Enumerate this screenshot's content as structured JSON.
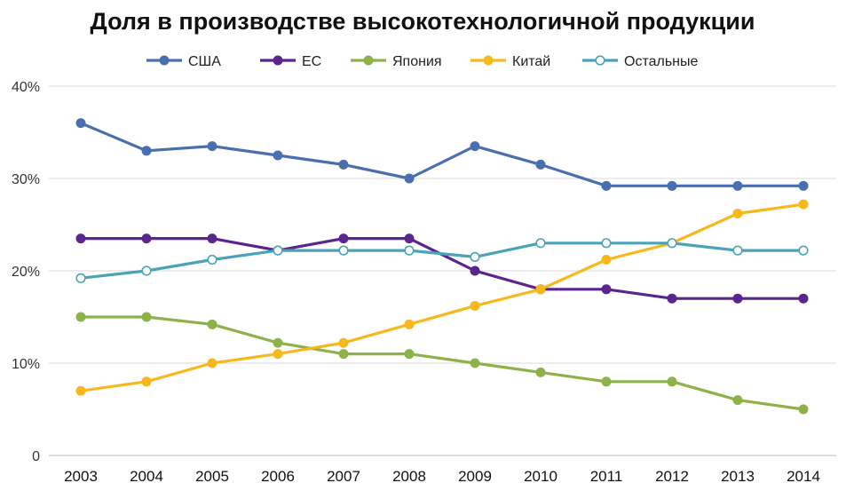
{
  "chart_data": {
    "type": "line",
    "title": "Доля в производстве высокотехнологичной продукции",
    "xlabel": "",
    "ylabel": "",
    "x": [
      "2003",
      "2004",
      "2005",
      "2006",
      "2007",
      "2008",
      "2009",
      "2010",
      "2011",
      "2012",
      "2013",
      "2014"
    ],
    "ylim": [
      0,
      40
    ],
    "yticks": [
      0,
      10,
      20,
      30,
      40
    ],
    "ytick_labels": [
      "0",
      "10%",
      "20%",
      "30%",
      "40%"
    ],
    "grid": true,
    "legend": "top",
    "series": [
      {
        "name": "США",
        "color": "#4a6fb0",
        "marker": "filled",
        "values": [
          36,
          33,
          33.5,
          32.5,
          31.5,
          30,
          33.5,
          31.5,
          29.2,
          29.2,
          29.2,
          29.2
        ]
      },
      {
        "name": "ЕС",
        "color": "#5b2590",
        "marker": "filled",
        "values": [
          23.5,
          23.5,
          23.5,
          22.2,
          23.5,
          23.5,
          20,
          18,
          18,
          17,
          17,
          17
        ]
      },
      {
        "name": "Япония",
        "color": "#8db24a",
        "marker": "filled",
        "values": [
          15,
          15,
          14.2,
          12.2,
          11,
          11,
          10,
          9,
          8,
          8,
          6,
          5
        ]
      },
      {
        "name": "Китай",
        "color": "#f6b81c",
        "marker": "filled",
        "values": [
          7,
          8,
          10,
          11,
          12.2,
          14.2,
          16.2,
          18,
          21.2,
          23,
          26.2,
          27.2
        ]
      },
      {
        "name": "Остальные",
        "color": "#4ba3b8",
        "marker": "open",
        "values": [
          19.2,
          20,
          21.2,
          22.2,
          22.2,
          22.2,
          21.5,
          23,
          23,
          23,
          22.2,
          22.2
        ]
      }
    ]
  }
}
